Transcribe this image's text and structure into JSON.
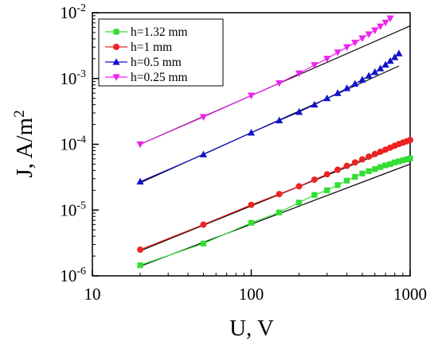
{
  "chart_data": {
    "type": "scatter",
    "title": "",
    "xlabel": "U, V",
    "ylabel_base": "J, A/m",
    "ylabel_sup": "2",
    "x_scale": "log",
    "y_scale": "log",
    "xlim": [
      10,
      1000
    ],
    "ylim": [
      1e-06,
      0.01
    ],
    "x_ticks": [
      {
        "value": 10,
        "label": "10"
      },
      {
        "value": 100,
        "label": "100"
      },
      {
        "value": 1000,
        "label": "1000"
      }
    ],
    "y_ticks": [
      {
        "value": 1e-06,
        "base": "10",
        "exp": "-6"
      },
      {
        "value": 1e-05,
        "base": "10",
        "exp": "-5"
      },
      {
        "value": 0.0001,
        "base": "10",
        "exp": "-4"
      },
      {
        "value": 0.001,
        "base": "10",
        "exp": "-3"
      },
      {
        "value": 0.01,
        "base": "10",
        "exp": "-2"
      }
    ],
    "grid": false,
    "legend_position": "top-left",
    "series": [
      {
        "name": "h=1.32 mm",
        "color": "#33dd33",
        "marker": "square",
        "x": [
          20,
          50,
          100,
          150,
          200,
          250,
          300,
          350,
          400,
          450,
          500,
          550,
          600,
          650,
          700,
          750,
          800,
          850,
          900,
          950,
          1000
        ],
        "y": [
          1.45e-06,
          3.1e-06,
          6.4e-06,
          9.2e-06,
          1.3e-05,
          1.7e-05,
          2e-05,
          2.4e-05,
          2.8e-05,
          3.2e-05,
          3.6e-05,
          3.9e-05,
          4.2e-05,
          4.5e-05,
          4.8e-05,
          5e-05,
          5.3e-05,
          5.5e-05,
          5.7e-05,
          5.9e-05,
          6.1e-05
        ],
        "fit": {
          "x": [
            20,
            1000
          ],
          "y": [
            1.4e-06,
            5e-05
          ]
        }
      },
      {
        "name": "h=1 mm",
        "color": "#ee2222",
        "marker": "circle",
        "x": [
          20,
          50,
          100,
          150,
          200,
          250,
          300,
          350,
          400,
          450,
          500,
          550,
          600,
          650,
          700,
          750,
          800,
          850,
          900,
          950,
          1000
        ],
        "y": [
          2.5e-06,
          6e-06,
          1.2e-05,
          1.75e-05,
          2.3e-05,
          2.9e-05,
          3.5e-05,
          4.1e-05,
          4.7e-05,
          5.3e-05,
          5.9e-05,
          6.5e-05,
          7.1e-05,
          7.7e-05,
          8.3e-05,
          8.9e-05,
          9.5e-05,
          0.000101,
          0.000106,
          0.000111,
          0.000116
        ],
        "fit": {
          "x": [
            20,
            1000
          ],
          "y": [
            2.4e-06,
            0.00011
          ]
        }
      },
      {
        "name": "h=0.5 mm",
        "color": "#1111cc",
        "marker": "triangle-up",
        "x": [
          20,
          50,
          100,
          150,
          200,
          250,
          300,
          350,
          400,
          450,
          500,
          550,
          600,
          650,
          700,
          750,
          800,
          850
        ],
        "y": [
          2.7e-05,
          7e-05,
          0.00015,
          0.00023,
          0.00031,
          0.0004,
          0.0005,
          0.0006,
          0.00071,
          0.00083,
          0.00096,
          0.0011,
          0.00125,
          0.00142,
          0.00162,
          0.00185,
          0.0021,
          0.0024
        ],
        "fit": {
          "x": [
            20,
            850
          ],
          "y": [
            2.6e-05,
            0.00155
          ]
        }
      },
      {
        "name": "h=0.25 mm",
        "color": "#ee22ee",
        "marker": "triangle-down",
        "x": [
          20,
          50,
          100,
          150,
          200,
          250,
          300,
          350,
          400,
          450,
          500,
          550,
          600,
          650,
          700,
          750
        ],
        "y": [
          0.0001,
          0.00026,
          0.00055,
          0.00085,
          0.0012,
          0.0016,
          0.002,
          0.0025,
          0.003,
          0.0035,
          0.0041,
          0.0047,
          0.0054,
          0.0062,
          0.0071,
          0.0082
        ],
        "fit": {
          "x": [
            20,
            1000
          ],
          "y": [
            0.0001,
            0.0063
          ]
        }
      }
    ]
  }
}
